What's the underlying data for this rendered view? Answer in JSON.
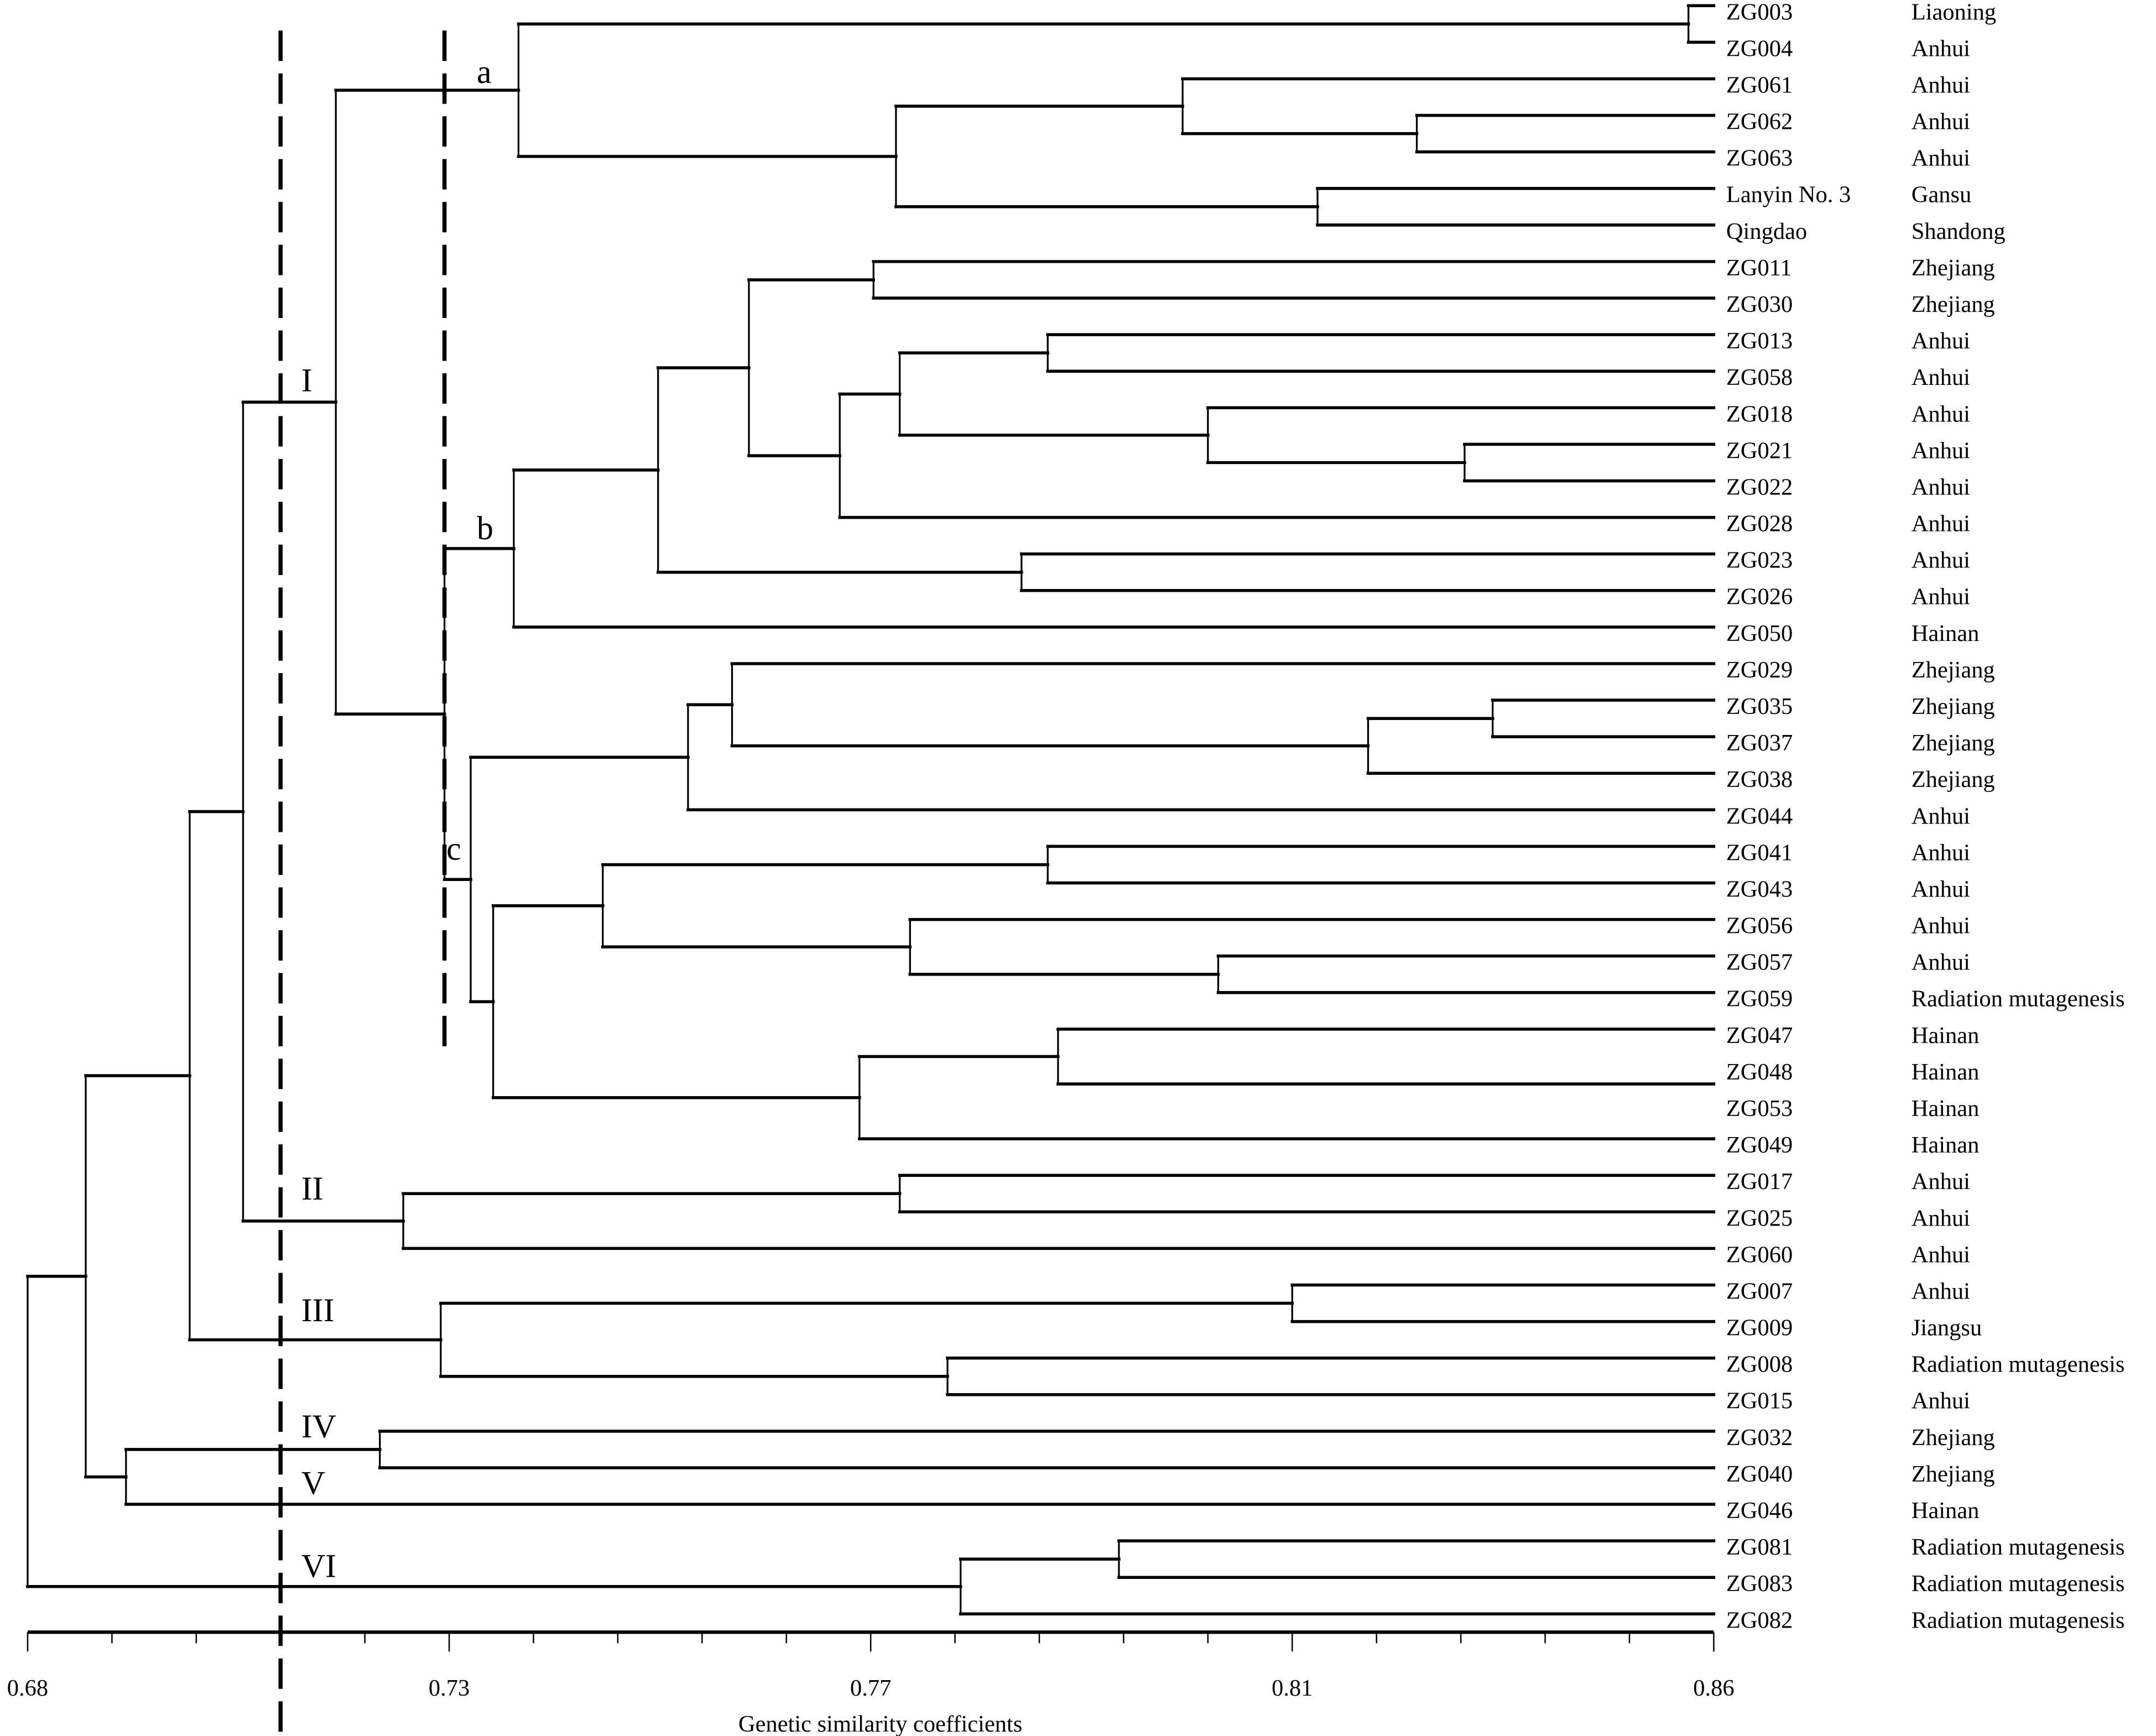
{
  "chart_data": {
    "type": "dendrogram",
    "xlabel": "Genetic similarity coefficients",
    "xlim": [
      0.68,
      0.86
    ],
    "tick_labels": [
      "0.68",
      "0.73",
      "0.77",
      "0.81",
      "0.86"
    ],
    "minor_ticks_per_major": 5,
    "line_color": "#000000",
    "cut_lines": [
      0.707,
      0.7245
    ],
    "leaves": [
      {
        "name": "ZG003",
        "origin": "Liaoning"
      },
      {
        "name": "ZG004",
        "origin": "Anhui"
      },
      {
        "name": "ZG061",
        "origin": "Anhui"
      },
      {
        "name": "ZG062",
        "origin": "Anhui"
      },
      {
        "name": "ZG063",
        "origin": "Anhui"
      },
      {
        "name": "Lanyin No. 3",
        "origin": "Gansu"
      },
      {
        "name": "Qingdao",
        "origin": "Shandong"
      },
      {
        "name": "ZG011",
        "origin": "Zhejiang"
      },
      {
        "name": "ZG030",
        "origin": "Zhejiang"
      },
      {
        "name": "ZG013",
        "origin": "Anhui"
      },
      {
        "name": "ZG058",
        "origin": "Anhui"
      },
      {
        "name": "ZG018",
        "origin": "Anhui"
      },
      {
        "name": "ZG021",
        "origin": "Anhui"
      },
      {
        "name": "ZG022",
        "origin": "Anhui"
      },
      {
        "name": "ZG028",
        "origin": "Anhui"
      },
      {
        "name": "ZG023",
        "origin": "Anhui"
      },
      {
        "name": "ZG026",
        "origin": "Anhui"
      },
      {
        "name": "ZG050",
        "origin": "Hainan"
      },
      {
        "name": "ZG029",
        "origin": "Zhejiang"
      },
      {
        "name": "ZG035",
        "origin": "Zhejiang"
      },
      {
        "name": "ZG037",
        "origin": "Zhejiang"
      },
      {
        "name": "ZG038",
        "origin": "Zhejiang"
      },
      {
        "name": "ZG044",
        "origin": "Anhui"
      },
      {
        "name": "ZG041",
        "origin": "Anhui"
      },
      {
        "name": "ZG043",
        "origin": "Anhui"
      },
      {
        "name": "ZG056",
        "origin": "Anhui"
      },
      {
        "name": "ZG057",
        "origin": "Anhui"
      },
      {
        "name": "ZG059",
        "origin": "Radiation mutagenesis"
      },
      {
        "name": "ZG047",
        "origin": "Hainan"
      },
      {
        "name": "ZG048",
        "origin": "Hainan"
      },
      {
        "name": "ZG053",
        "origin": "Hainan"
      },
      {
        "name": "ZG049",
        "origin": "Hainan"
      },
      {
        "name": "ZG017",
        "origin": "Anhui"
      },
      {
        "name": "ZG025",
        "origin": "Anhui"
      },
      {
        "name": "ZG060",
        "origin": "Anhui"
      },
      {
        "name": "ZG007",
        "origin": "Anhui"
      },
      {
        "name": "ZG009",
        "origin": "Jiangsu"
      },
      {
        "name": "ZG008",
        "origin": "Radiation mutagenesis"
      },
      {
        "name": "ZG015",
        "origin": "Anhui"
      },
      {
        "name": "ZG032",
        "origin": "Zhejiang"
      },
      {
        "name": "ZG040",
        "origin": "Zhejiang"
      },
      {
        "name": "ZG046",
        "origin": "Hainan"
      },
      {
        "name": "ZG081",
        "origin": "Radiation mutagenesis"
      },
      {
        "name": "ZG083",
        "origin": "Radiation mutagenesis"
      },
      {
        "name": "ZG082",
        "origin": "Radiation mutagenesis"
      }
    ],
    "cluster_labels": [
      "a",
      "b",
      "c",
      "I",
      "II",
      "III",
      "IV",
      "V",
      "VI"
    ],
    "tree": {
      "sim": 0.68,
      "children": [
        {
          "sim": 0.6862,
          "children": [
            {
              "sim": 0.6973,
              "children": [
                {
                  "sim": 0.703,
                  "children": [
                    {
                      "sim": 0.7129,
                      "children": [
                        {
                          "sim": 0.7324,
                          "children": [
                            {
                              "sim": 0.8573,
                              "children": [
                                0,
                                1
                              ]
                            },
                            {
                              "sim": 0.7727,
                              "children": [
                                {
                                  "sim": 0.8033,
                                  "children": [
                                    2,
                                    {
                                      "sim": 0.8283,
                                      "children": [
                                        3,
                                        4
                                      ]
                                    }
                                  ]
                                },
                                {
                                  "sim": 0.8177,
                                  "children": [
                                    5,
                                    6
                                  ]
                                }
                              ]
                            }
                          ]
                        },
                        {
                          "sim": 0.7245,
                          "children": [
                            {
                              "sim": 0.7319,
                              "children": [
                                {
                                  "sim": 0.7473,
                                  "children": [
                                    {
                                      "sim": 0.757,
                                      "children": [
                                        {
                                          "sim": 0.7703,
                                          "children": [
                                            7,
                                            8
                                          ]
                                        },
                                        {
                                          "sim": 0.7667,
                                          "children": [
                                            {
                                              "sim": 0.7731,
                                              "children": [
                                                {
                                                  "sim": 0.7889,
                                                  "children": [
                                                    9,
                                                    10
                                                  ]
                                                },
                                                {
                                                  "sim": 0.806,
                                                  "children": [
                                                    11,
                                                    {
                                                      "sim": 0.8334,
                                                      "children": [
                                                        12,
                                                        13
                                                      ]
                                                    }
                                                  ]
                                                }
                                              ]
                                            },
                                            14
                                          ]
                                        }
                                      ]
                                    },
                                    {
                                      "sim": 0.7861,
                                      "children": [
                                        15,
                                        16
                                      ]
                                    }
                                  ]
                                },
                                17
                              ]
                            },
                            {
                              "sim": 0.7273,
                              "children": [
                                {
                                  "sim": 0.7505,
                                  "children": [
                                    {
                                      "sim": 0.7552,
                                      "children": [
                                        18,
                                        {
                                          "sim": 0.8231,
                                          "children": [
                                            {
                                              "sim": 0.8364,
                                              "children": [
                                                19,
                                                20
                                              ]
                                            },
                                            21
                                          ]
                                        }
                                      ]
                                    },
                                    22
                                  ]
                                },
                                {
                                  "sim": 0.7297,
                                  "children": [
                                    {
                                      "sim": 0.7414,
                                      "children": [
                                        {
                                          "sim": 0.7889,
                                          "children": [
                                            23,
                                            24
                                          ]
                                        },
                                        {
                                          "sim": 0.7742,
                                          "children": [
                                            25,
                                            {
                                              "sim": 0.8071,
                                              "children": [
                                                26,
                                                27
                                              ]
                                            }
                                          ]
                                        }
                                      ]
                                    },
                                    {
                                      "sim": 0.7688,
                                      "children": [
                                        {
                                          "sim": 0.79,
                                          "children": [
                                            28,
                                            {
                                              "sim": 0.86,
                                              "children": [
                                                29,
                                                30
                                              ]
                                            }
                                          ]
                                        },
                                        31
                                      ]
                                    }
                                  ]
                                }
                              ]
                            }
                          ]
                        }
                      ]
                    },
                    {
                      "sim": 0.7201,
                      "children": [
                        {
                          "sim": 0.7731,
                          "children": [
                            32,
                            33
                          ]
                        },
                        34
                      ]
                    }
                  ]
                },
                {
                  "sim": 0.7241,
                  "children": [
                    {
                      "sim": 0.815,
                      "children": [
                        35,
                        36
                      ]
                    },
                    {
                      "sim": 0.7782,
                      "children": [
                        37,
                        38
                      ]
                    }
                  ]
                }
              ]
            },
            {
              "sim": 0.6905,
              "children": [
                {
                  "sim": 0.7176,
                  "children": [
                    39,
                    40
                  ]
                },
                41
              ]
            }
          ]
        },
        {
          "sim": 0.7796,
          "children": [
            {
              "sim": 0.7965,
              "children": [
                42,
                43
              ]
            },
            44
          ]
        }
      ]
    }
  }
}
